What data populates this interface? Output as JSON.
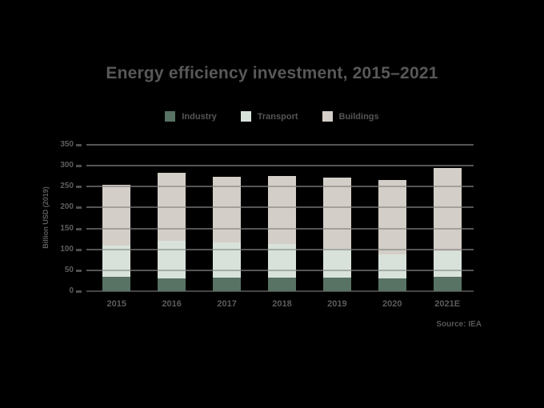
{
  "title": "Energy efficiency investment, 2015–2021",
  "source": "Source: IEA",
  "chart_data": {
    "type": "bar",
    "stacked": true,
    "title": "Energy efficiency investment, 2015–2021",
    "categories": [
      "2015",
      "2016",
      "2017",
      "2018",
      "2019",
      "2020",
      "2021E"
    ],
    "series": [
      {
        "name": "Industry",
        "color": "#587263",
        "values": [
          34,
          31,
          32,
          32,
          33,
          31,
          35
        ]
      },
      {
        "name": "Transport",
        "color": "#D8E2DB",
        "values": [
          75,
          90,
          84,
          80,
          68,
          57,
          61
        ]
      },
      {
        "name": "Buildings",
        "color": "#D3CEC7",
        "values": [
          146,
          162,
          157,
          163,
          171,
          177,
          199
        ]
      }
    ],
    "totals": [
      255,
      283,
      273,
      275,
      272,
      265,
      295
    ],
    "xlabel": "",
    "ylabel": "Billion USD (2019)",
    "ylim": [
      0,
      350
    ],
    "yticks": [
      0,
      50,
      100,
      150,
      200,
      250,
      300,
      350
    ],
    "grid": true,
    "legend_position": "top-center",
    "source": "Source: IEA"
  }
}
